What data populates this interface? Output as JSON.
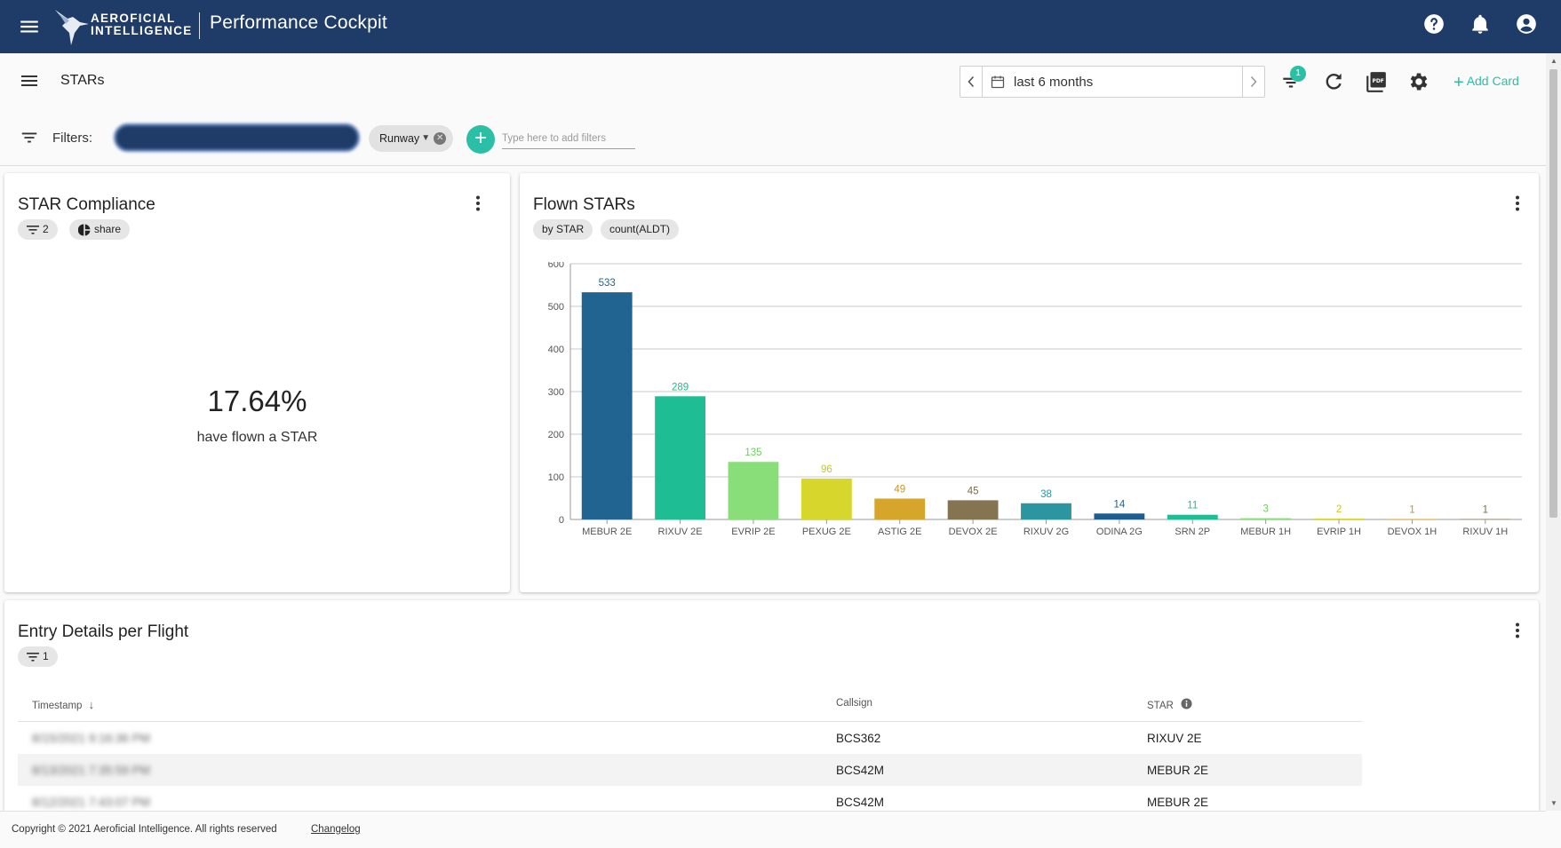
{
  "header": {
    "logo_line1": "AEROFICIAL",
    "logo_line2": "INTELLIGENCE",
    "app_title": "Performance Cockpit",
    "icons": [
      "menu-icon",
      "help-icon",
      "bell-icon",
      "account-icon"
    ]
  },
  "toolbar": {
    "page_title": "STARs",
    "date_range": "last 6 months",
    "filter_badge": "1",
    "add_card_label": "Add Card",
    "icons": [
      "filter-icon",
      "refresh-icon",
      "pdf-icon",
      "gear-icon"
    ]
  },
  "filters": {
    "label": "Filters:",
    "runway_chip": "Runway",
    "input_placeholder": "Type here to add filters"
  },
  "cards": {
    "compliance": {
      "title": "STAR Compliance",
      "filter_count": "2",
      "share_label": "share",
      "value": "17.64%",
      "caption": "have flown a STAR"
    },
    "flown": {
      "title": "Flown STARs",
      "pill_group": "by STAR",
      "pill_measure": "count(ALDT)"
    },
    "entries": {
      "title": "Entry Details per Flight",
      "filter_count": "1",
      "columns": {
        "timestamp": "Timestamp",
        "callsign": "Callsign",
        "star": "STAR"
      },
      "rows": [
        {
          "timestamp": "8/15/2021 9:16:36 PM",
          "callsign": "BCS362",
          "star": "RIXUV 2E"
        },
        {
          "timestamp": "8/13/2021 7:35:59 PM",
          "callsign": "BCS42M",
          "star": "MEBUR 2E"
        },
        {
          "timestamp": "8/12/2021 7:43:07 PM",
          "callsign": "BCS42M",
          "star": "MEBUR 2E"
        }
      ]
    }
  },
  "chart_data": {
    "type": "bar",
    "categories": [
      "MEBUR 2E",
      "RIXUV 2E",
      "EVRIP 2E",
      "PEXUG 2E",
      "ASTIG 2E",
      "DEVOX 2E",
      "RIXUV 2G",
      "ODINA 2G",
      "SRN 2P",
      "MEBUR 1H",
      "EVRIP 1H",
      "DEVOX 1H",
      "RIXUV 1H"
    ],
    "values": [
      533,
      289,
      135,
      96,
      49,
      45,
      38,
      14,
      11,
      3,
      2,
      1,
      1
    ],
    "colors": [
      "#226491",
      "#1ebd93",
      "#8ade7a",
      "#d6d62c",
      "#d6a52c",
      "#857451",
      "#2b95a0",
      "#1f5d8f",
      "#1ebd93",
      "#8ade7a",
      "#d6d62c",
      "#d6a52c",
      "#857451"
    ],
    "label_colors": [
      "#226491",
      "#1ebd93",
      "#6bd05a",
      "#c8c81e",
      "#c89520",
      "#7a6b4a",
      "#2b95a0",
      "#1f5d8f",
      "#1ebd93",
      "#6bd05a",
      "#c8c81e",
      "#c89520",
      "#7a6b4a"
    ],
    "yticks": [
      0,
      100,
      200,
      300,
      400,
      500,
      600
    ],
    "ylim": [
      0,
      600
    ],
    "grid": true,
    "title": "",
    "xlabel": "",
    "ylabel": ""
  },
  "footer": {
    "copyright": "Copyright © 2021 Aeroficial Intelligence. All rights reserved",
    "changelog": "Changelog"
  }
}
